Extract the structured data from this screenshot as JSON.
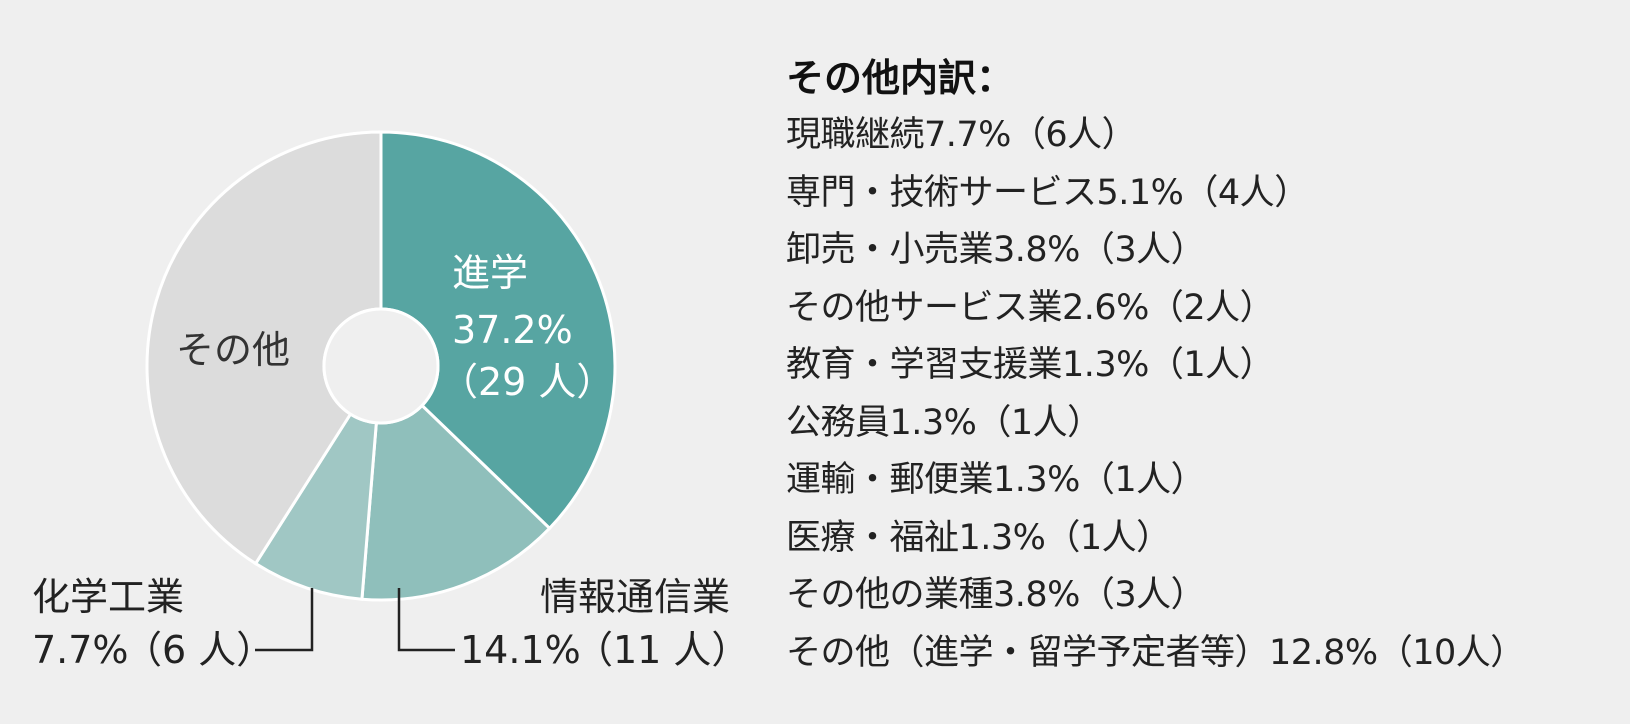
{
  "chart_data": {
    "type": "pie",
    "slices": [
      {
        "label": "進学",
        "pct_text": "37.2%",
        "count_text": "（29 人）",
        "value": 37.2,
        "color": "#57a5a2",
        "label_dark": false
      },
      {
        "label": "情報通信業",
        "pct_text": "14.1%",
        "count_text": "（11 人）",
        "value": 14.1,
        "color": "#8fbfbb"
      },
      {
        "label": "化学工業",
        "pct_text": "7.7%",
        "count_text": "（6 人）",
        "value": 7.7,
        "color": "#a0c7c4"
      },
      {
        "label": "その他",
        "value": 41.0,
        "color": "#dcdcdc",
        "label_dark": true
      }
    ]
  },
  "breakdown": {
    "title": "その他内訳：",
    "items": [
      "現職継続7.7%（6人）",
      "専門・技術サービス5.1%（4人）",
      "卸売・小売業3.8%（3人）",
      "その他サービス業2.6%（2人）",
      "教育・学習支援業1.3%（1人）",
      "公務員1.3%（1人）",
      "運輸・郵便業1.3%（1人）",
      "医療・福祉1.3%（1人）",
      "その他の業種3.8%（3人）",
      "その他（進学・留学予定者等）12.8%（10人）"
    ]
  }
}
